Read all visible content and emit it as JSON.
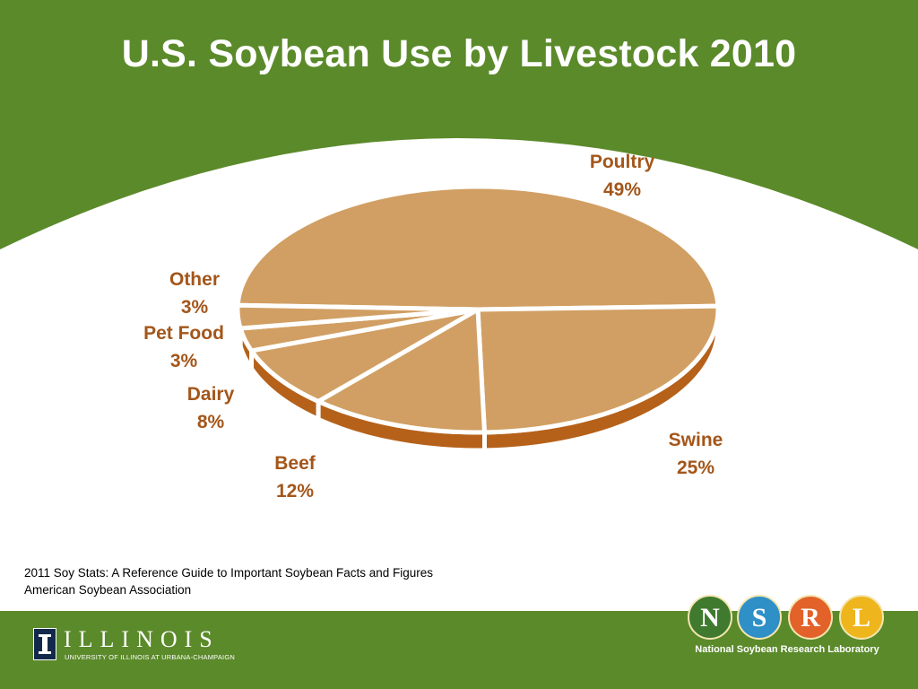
{
  "slide": {
    "title": "U.S. Soybean Use by Livestock 2010",
    "source_line1": "2011 Soy Stats: A Reference Guide to Important Soybean Facts and Figures",
    "source_line2": "American Soybean Association"
  },
  "logos": {
    "illinois_name": "ILLINOIS",
    "illinois_subtitle": "UNIVERSITY OF ILLINOIS AT URBANA-CHAMPAIGN",
    "nsrl_letters": [
      "N",
      "S",
      "R",
      "L"
    ],
    "nsrl_name": "National Soybean Research Laboratory"
  },
  "colors": {
    "green": "#5b8a2a",
    "slice_top": "#d19f63",
    "slice_side": "#b5611a",
    "label": "#a3561a",
    "nsrl_n": "#3f7a2e",
    "nsrl_s": "#2f8fc7",
    "nsrl_r": "#e2622a",
    "nsrl_l": "#efb51d"
  },
  "chart_data": {
    "type": "pie",
    "title": "U.S. Soybean Use by Livestock 2010",
    "categories": [
      "Poultry",
      "Swine",
      "Beef",
      "Dairy",
      "Pet Food",
      "Other"
    ],
    "values": [
      49,
      25,
      12,
      8,
      3,
      3
    ],
    "value_labels": [
      "49%",
      "25%",
      "12%",
      "8%",
      "3%",
      "3%"
    ],
    "unit": "%",
    "style": "3d",
    "legend": "none"
  }
}
